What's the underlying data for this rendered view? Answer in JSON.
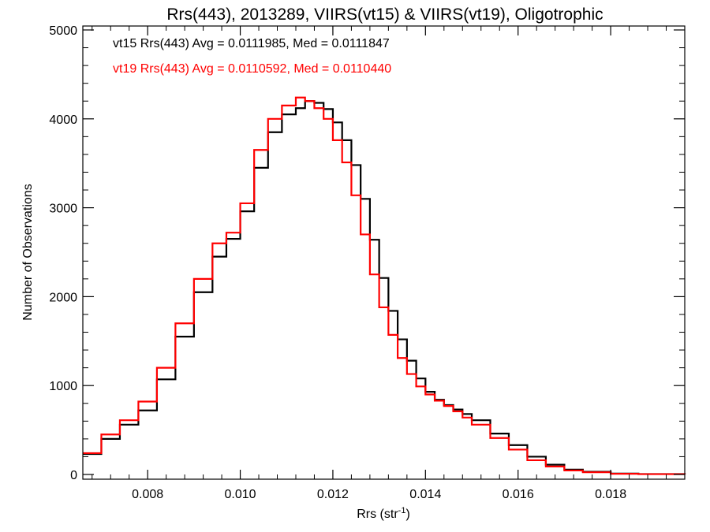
{
  "chart_data": {
    "type": "line",
    "title": "Rrs(443), 2013289, VIIRS(vt15) & VIIRS(vt19), Oligotrophic",
    "xlabel": "Rrs (str",
    "xlabel_sup": "-1",
    "xlabel_close": ")",
    "ylabel": "Number of Observations",
    "xlim": [
      0.0066,
      0.0196
    ],
    "ylim": [
      0,
      5000
    ],
    "xticks": [
      0.008,
      0.01,
      0.012,
      0.014,
      0.016,
      0.018
    ],
    "xtick_labels": [
      "0.008",
      "0.010",
      "0.012",
      "0.014",
      "0.016",
      "0.018"
    ],
    "yticks": [
      0,
      1000,
      2000,
      3000,
      4000,
      5000
    ],
    "ytick_labels": [
      "0",
      "1000",
      "2000",
      "3000",
      "4000",
      "5000"
    ],
    "grid": false,
    "legend_placement": "top-left",
    "series": [
      {
        "name": "vt15",
        "legend_text": "vt15 Rrs(443) Avg = 0.0111985, Med = 0.0111847",
        "color": "#000000",
        "x": [
          0.0066,
          0.007,
          0.0074,
          0.0078,
          0.0082,
          0.0086,
          0.009,
          0.0094,
          0.0097,
          0.01,
          0.0103,
          0.0106,
          0.0109,
          0.0112,
          0.0114,
          0.0116,
          0.0118,
          0.012,
          0.0122,
          0.0124,
          0.0126,
          0.0128,
          0.013,
          0.0132,
          0.0134,
          0.0136,
          0.0138,
          0.014,
          0.0142,
          0.0144,
          0.0146,
          0.0148,
          0.015,
          0.0154,
          0.0158,
          0.0162,
          0.0166,
          0.017,
          0.0174,
          0.018,
          0.0186,
          0.0196
        ],
        "y": [
          230,
          400,
          560,
          720,
          1070,
          1550,
          2050,
          2450,
          2650,
          2960,
          3450,
          3850,
          4050,
          4120,
          4200,
          4180,
          4110,
          3960,
          3760,
          3480,
          3100,
          2640,
          2210,
          1840,
          1520,
          1280,
          1080,
          930,
          840,
          780,
          730,
          680,
          610,
          460,
          330,
          200,
          110,
          55,
          30,
          10,
          5,
          0
        ]
      },
      {
        "name": "vt19",
        "legend_text": "vt19 Rrs(443) Avg = 0.0110592, Med = 0.0110440",
        "color": "#ff0000",
        "x": [
          0.0066,
          0.007,
          0.0074,
          0.0078,
          0.0082,
          0.0086,
          0.009,
          0.0094,
          0.0097,
          0.01,
          0.0103,
          0.0106,
          0.0109,
          0.0112,
          0.0114,
          0.0116,
          0.0118,
          0.012,
          0.0122,
          0.0124,
          0.0126,
          0.0128,
          0.013,
          0.0132,
          0.0134,
          0.0136,
          0.0138,
          0.014,
          0.0142,
          0.0144,
          0.0146,
          0.0148,
          0.015,
          0.0154,
          0.0158,
          0.0162,
          0.0166,
          0.017,
          0.0174,
          0.018,
          0.0186,
          0.0196
        ],
        "y": [
          240,
          450,
          610,
          820,
          1200,
          1700,
          2200,
          2600,
          2720,
          3050,
          3650,
          4000,
          4150,
          4240,
          4200,
          4120,
          4000,
          3760,
          3510,
          3140,
          2700,
          2250,
          1880,
          1570,
          1310,
          1130,
          990,
          900,
          830,
          770,
          710,
          640,
          560,
          410,
          280,
          160,
          90,
          45,
          25,
          8,
          4,
          0
        ]
      }
    ]
  }
}
